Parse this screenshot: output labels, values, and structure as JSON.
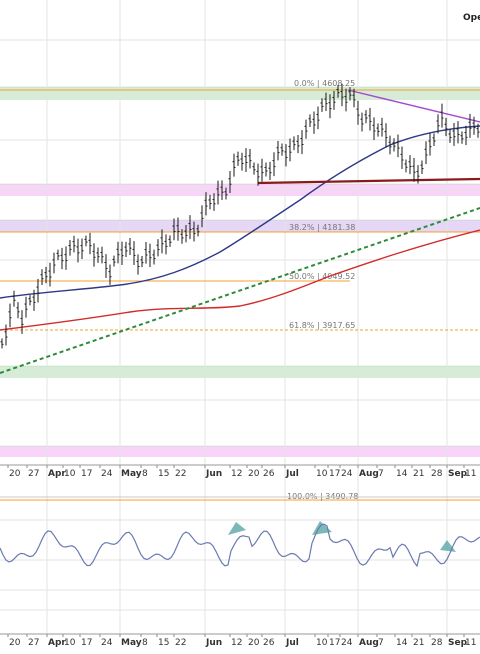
{
  "header": {
    "corner_label": "Ope"
  },
  "chart_data": [
    {
      "type": "ohlc_price",
      "grid": true,
      "fib_levels": [
        {
          "label": "0.0% | 4608.25",
          "value": 4608.25
        },
        {
          "label": "38.2% | 4181.38",
          "value": 4181.38
        },
        {
          "label": "50.0% | 4049.52",
          "value": 4049.52
        },
        {
          "label": "61.8% | 3917.65",
          "value": 3917.65
        },
        {
          "label": "100.0% | 3490.78",
          "value": 3490.78
        }
      ],
      "x_ticks": [
        "20",
        "27",
        "Apr",
        "10",
        "17",
        "24",
        "May",
        "8",
        "15",
        "22",
        "Jun",
        "12",
        "20",
        "26",
        "Jul",
        "10",
        "17",
        "24",
        "Aug",
        "7",
        "14",
        "21",
        "28",
        "Sep",
        "11"
      ],
      "zones": [
        {
          "color": "#c9e6c9",
          "meaning": "green band near 0.0% level"
        },
        {
          "color": "#f5c6f5",
          "meaning": "pink band"
        },
        {
          "color": "#dcc9f2",
          "meaning": "lavender band near 38.2%"
        },
        {
          "color": "#c9e6c9",
          "meaning": "green band at lower channel"
        },
        {
          "color": "#f5c6f5",
          "meaning": "lower pink band"
        }
      ],
      "series": [
        {
          "kind": "moving-average",
          "color": "#2e3a87"
        },
        {
          "kind": "moving-average",
          "color": "#d22b2b"
        },
        {
          "kind": "trendline-dotted",
          "color": "#2e8b3a"
        },
        {
          "kind": "trendline-support",
          "color": "#8b1a1a"
        },
        {
          "kind": "trendline-resistance",
          "color": "#a04ad0"
        }
      ],
      "colors": {
        "background": "#ffffff",
        "fib": "#f0a030",
        "grid": "#e3e3e3",
        "bars": "#1a1a1a"
      }
    },
    {
      "type": "line",
      "indicator": "oscillator",
      "series_color": "#6a7ab0",
      "fill_color": "#5aa8a8"
    }
  ]
}
